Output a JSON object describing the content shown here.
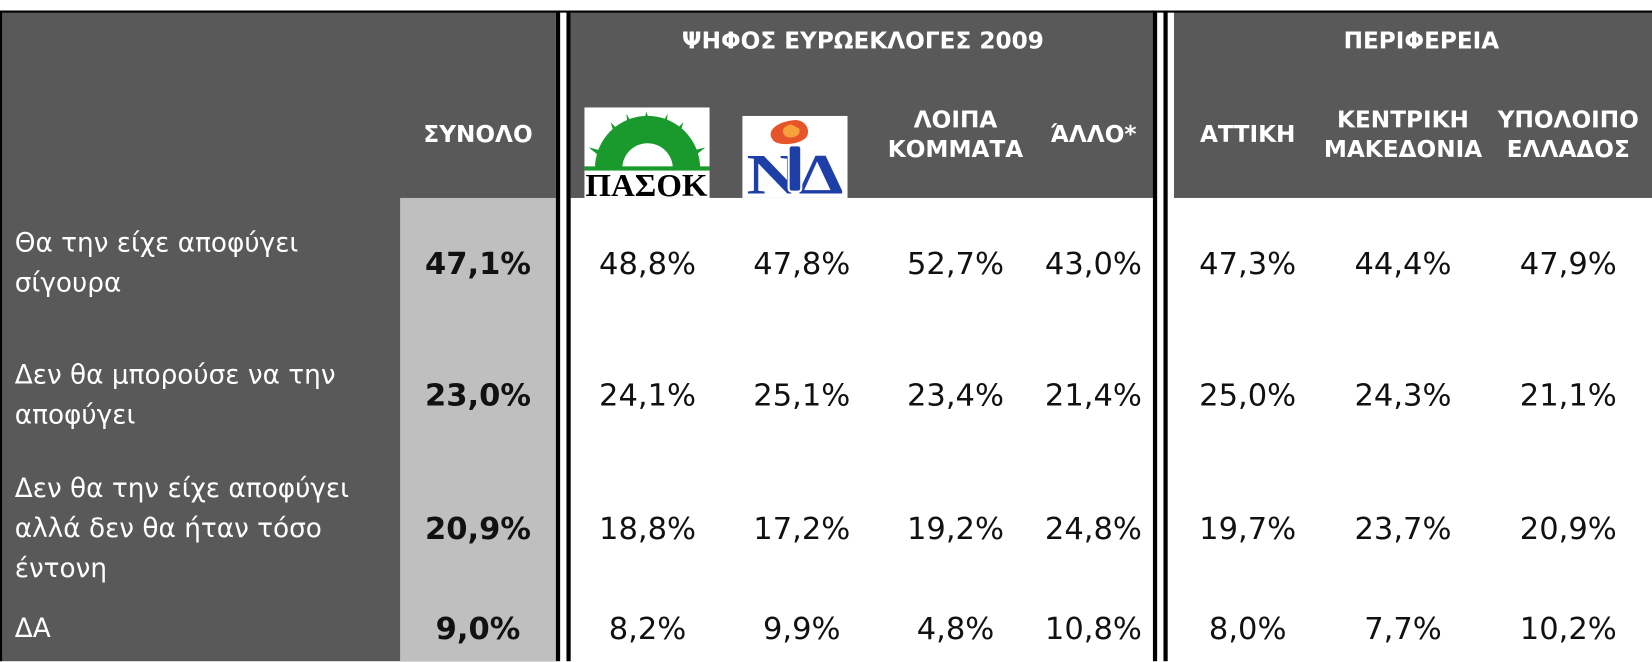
{
  "table": {
    "group_headers": [
      "ΨΗΦΟΣ ΕΥΡΩΕΚΛΟΓΕΣ 2009",
      "ΠΕΡΙΦΕΡΕΙΑ"
    ],
    "columns": [
      "ΣΥΝΟΛΟ",
      "ΠΑΣΟΚ",
      "ΝΔ",
      "ΛΟΙΠΑ ΚΟΜΜΑΤΑ",
      "ΆΛΛΟ*",
      "ΑΤΤΙΚΗ",
      "ΚΕΝΤΡΙΚΗ ΜΑΚΕΔΟΝΙΑ",
      "ΥΠΟΛΟΙΠΟ ΕΛΛΑΔΟΣ"
    ],
    "rows": [
      {
        "label": "Θα την είχε αποφύγει σίγουρα",
        "values": [
          "47,1%",
          "48,8%",
          "47,8%",
          "52,7%",
          "43,0%",
          "47,3%",
          "44,4%",
          "47,9%"
        ]
      },
      {
        "label": "Δεν θα μπορούσε να την αποφύγει",
        "values": [
          "23,0%",
          "24,1%",
          "25,1%",
          "23,4%",
          "21,4%",
          "25,0%",
          "24,3%",
          "21,1%"
        ]
      },
      {
        "label": "Δεν θα την είχε αποφύγει αλλά δεν θα ήταν τόσο έντονη",
        "values": [
          "20,9%",
          "18,8%",
          "17,2%",
          "19,2%",
          "24,8%",
          "19,7%",
          "23,7%",
          "20,9%"
        ]
      },
      {
        "label": "ΔΑ",
        "values": [
          "9,0%",
          "8,2%",
          "9,9%",
          "4,8%",
          "10,8%",
          "8,0%",
          "7,7%",
          "10,2%"
        ]
      }
    ]
  }
}
